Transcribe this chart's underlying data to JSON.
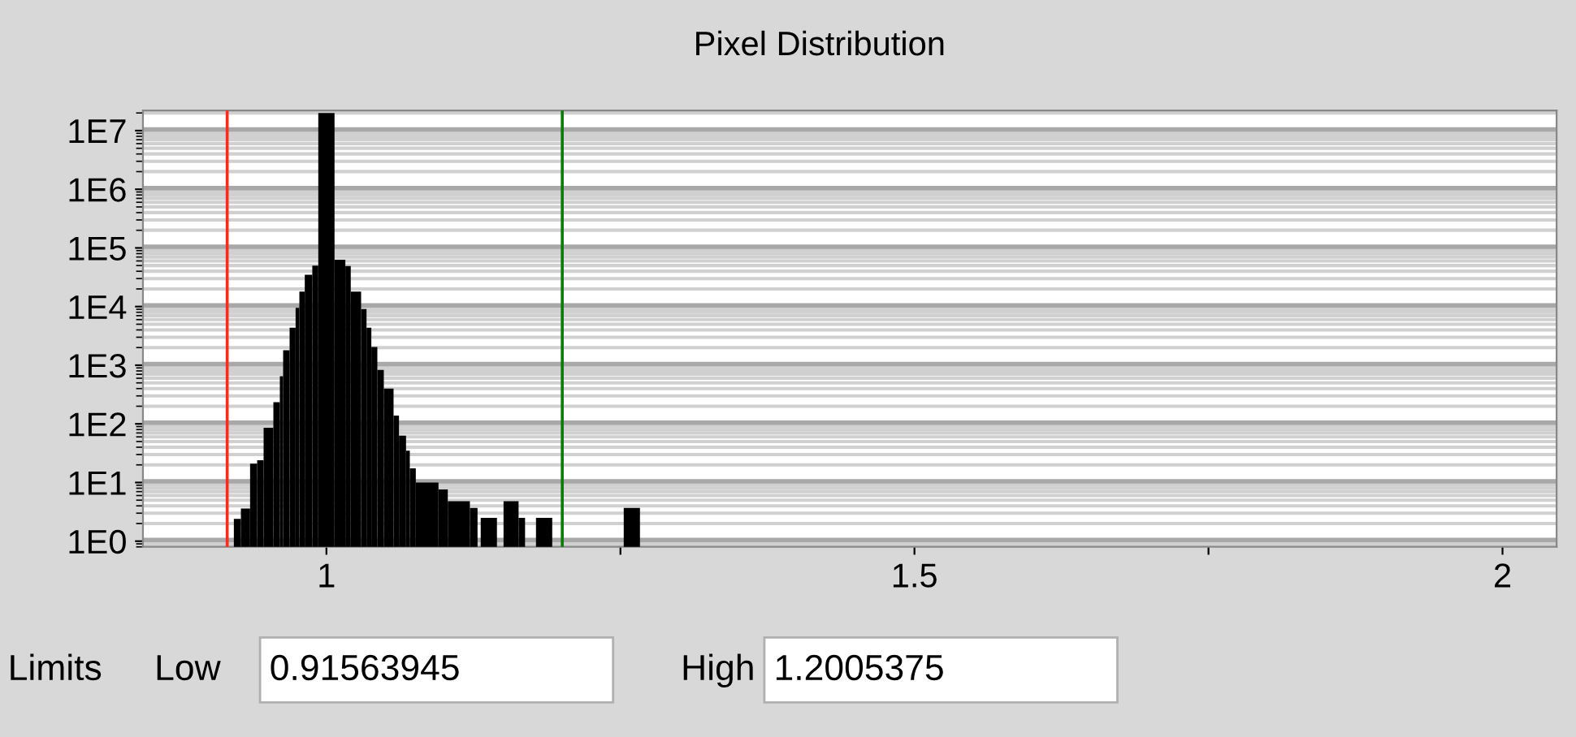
{
  "chart_data": {
    "type": "histogram",
    "title": "Pixel Distribution",
    "bins": [
      0.9213,
      0.9273,
      0.9351,
      0.9411,
      0.9466,
      0.9549,
      0.9604,
      0.9632,
      0.9687,
      0.9738,
      0.977,
      0.9816,
      0.988,
      0.9931,
      1.0069,
      1.0161,
      1.0207,
      1.0295,
      1.0341,
      1.0382,
      1.0433,
      1.0488,
      1.0571,
      1.0617,
      1.0677,
      1.0709,
      1.076,
      1.0953,
      1.1032,
      1.122,
      1.1285,
      1.1312,
      1.145,
      1.1506,
      1.1634,
      1.1689,
      1.1782,
      1.192,
      1.2528,
      1.2666
    ],
    "values": [
      2.4,
      3.6,
      21,
      24,
      86,
      235,
      650,
      1800,
      4350,
      9500,
      18000,
      35000,
      50000,
      20000000,
      63000,
      49000,
      18000,
      9100,
      4350,
      2050,
      830,
      400,
      138,
      63,
      35,
      17.5,
      10,
      7.6,
      4.8,
      3.7,
      null,
      2.5,
      null,
      4.8,
      2.5,
      null,
      2.5,
      null,
      3.7
    ],
    "color": "#000000",
    "log": "y",
    "xlim": [
      0.844,
      2.046
    ],
    "xticks": [
      1,
      {
        "value": 1.25,
        "label": null
      },
      1.5,
      {
        "value": 1.75,
        "label": null
      },
      2
    ],
    "ylim": [
      0.8,
      22000000
    ],
    "yticks": [
      {
        "value": 1,
        "label": "1E0"
      },
      {
        "value": 10,
        "label": "1E1"
      },
      {
        "value": 100,
        "label": "1E2"
      },
      {
        "value": 1000,
        "label": "1E3"
      },
      {
        "value": 10000,
        "label": "1E4"
      },
      {
        "value": 100000,
        "label": "1E5"
      },
      {
        "value": 1000000,
        "label": "1E6"
      },
      {
        "value": 10000000,
        "label": "1E7"
      }
    ],
    "grid": "y",
    "ref_lines": [
      {
        "axis": "x",
        "value": 0.91563945,
        "color": "#ff2a1a"
      },
      {
        "axis": "x",
        "value": 1.2005375,
        "color": "#0a7a0a"
      }
    ],
    "annotations": [
      "Limits",
      "Low",
      "0.91563945",
      "High",
      "1.2005375"
    ]
  }
}
